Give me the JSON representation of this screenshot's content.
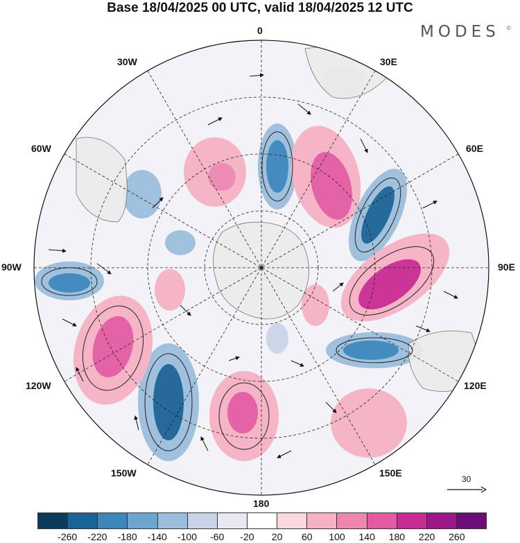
{
  "title": "Base 18/04/2025 00 UTC, valid 18/04/2025 12 UTC",
  "logo": "MODES",
  "logo_mark": "©",
  "longitude_labels": {
    "lon_0": "0",
    "lon_30e": "30E",
    "lon_60e": "60E",
    "lon_90e": "90E",
    "lon_120e": "120E",
    "lon_150e": "150E",
    "lon_180": "180",
    "lon_150w": "150W",
    "lon_120w": "120W",
    "lon_90w": "90W",
    "lon_60w": "60W",
    "lon_30w": "30W"
  },
  "reference_vector": {
    "label": "30"
  },
  "colorbar": {
    "colors": [
      "#0d3b5c",
      "#1a6396",
      "#3a86bd",
      "#6aa6d0",
      "#9bbedc",
      "#c8d4e8",
      "#e7e8f1",
      "#ffffff",
      "#fbdadf",
      "#f5b2c3",
      "#ee86b0",
      "#e35aa2",
      "#c92b93",
      "#9e1787",
      "#6e0d7a"
    ],
    "tick_labels": [
      "-260",
      "-220",
      "-180",
      "-140",
      "-100",
      "-60",
      "-20",
      "20",
      "60",
      "100",
      "140",
      "180",
      "220",
      "260"
    ]
  },
  "map_features": {
    "projection": "south-polar-stereographic",
    "fill_field": "anomaly",
    "land_color": "#ebebeb",
    "graticule": "dashed"
  }
}
